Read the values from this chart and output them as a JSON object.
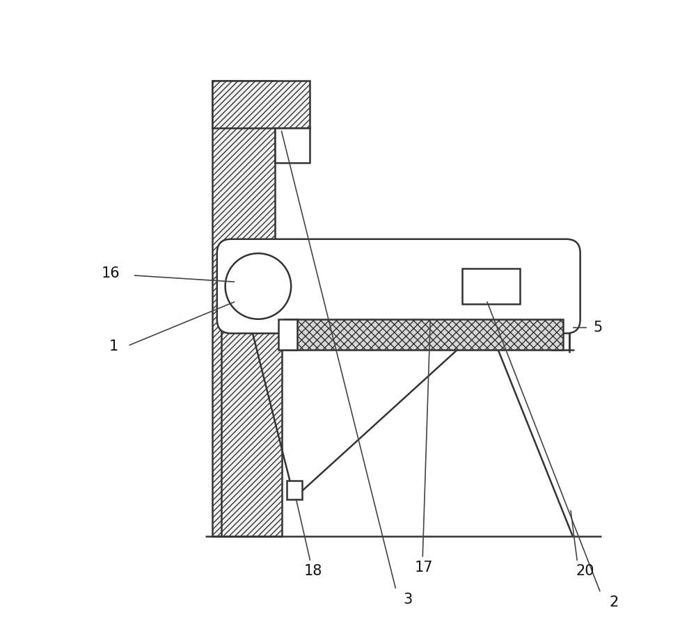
{
  "bg_color": "#ffffff",
  "line_color": "#333333",
  "figsize": [
    10.0,
    9.23
  ],
  "dpi": 100
}
